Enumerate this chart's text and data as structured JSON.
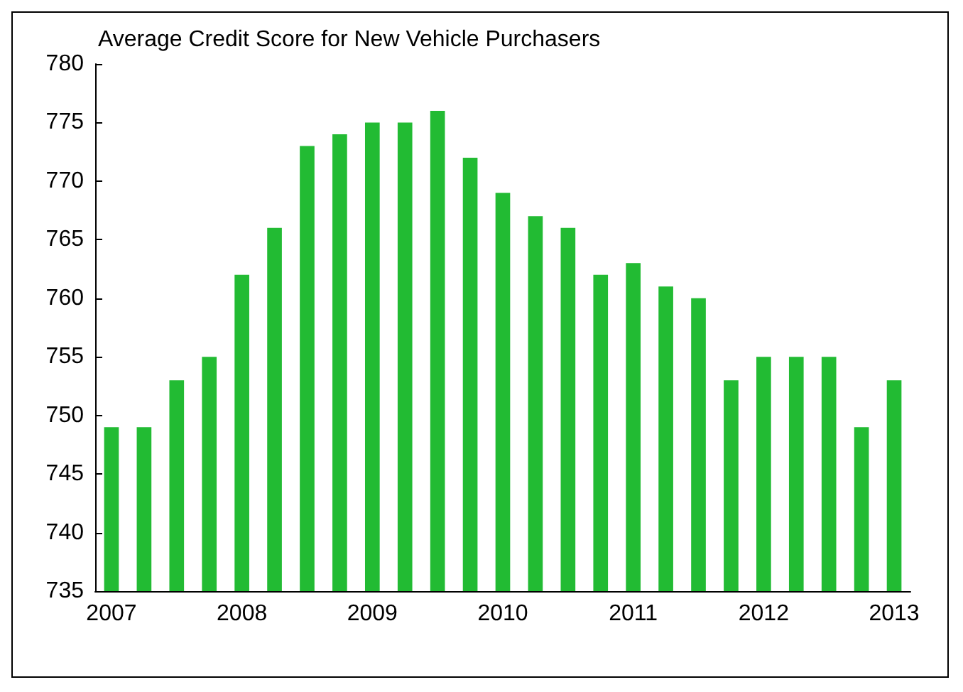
{
  "chart_data": {
    "type": "bar",
    "title": "Average Credit Score for New Vehicle Purchasers",
    "categories": [
      "2007",
      null,
      null,
      null,
      "2008",
      null,
      null,
      null,
      "2009",
      null,
      null,
      null,
      "2010",
      null,
      null,
      null,
      "2011",
      null,
      null,
      null,
      "2012",
      null,
      null,
      null,
      "2013"
    ],
    "values": [
      749,
      749,
      753,
      755,
      762,
      766,
      773,
      774,
      775,
      775,
      776,
      772,
      769,
      767,
      766,
      762,
      763,
      761,
      760,
      753,
      755,
      755,
      755,
      749,
      753
    ],
    "color": "#22bb33",
    "ylim": [
      735,
      780
    ],
    "yticks": [
      735,
      740,
      745,
      750,
      755,
      760,
      765,
      770,
      775,
      780
    ],
    "grid": false
  }
}
